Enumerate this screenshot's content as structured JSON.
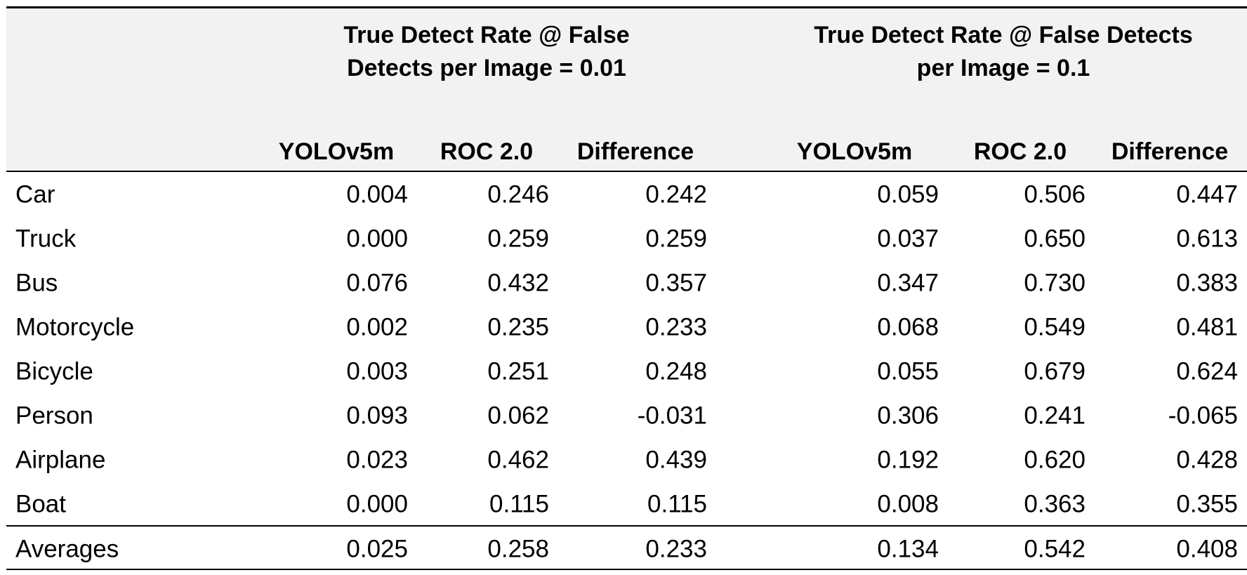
{
  "table": {
    "groups": [
      {
        "lines": [
          "True Detect Rate @ False",
          "Detects per Image = 0.01"
        ]
      },
      {
        "lines": [
          "True Detect Rate @ False Detects",
          "per Image = 0.1"
        ]
      }
    ],
    "columns": [
      "YOLOv5m",
      "ROC 2.0",
      "Difference",
      "YOLOv5m",
      "ROC 2.0",
      "Difference"
    ],
    "rows": [
      [
        "Car",
        "0.004",
        "0.246",
        "0.242",
        "0.059",
        "0.506",
        "0.447"
      ],
      [
        "Truck",
        "0.000",
        "0.259",
        "0.259",
        "0.037",
        "0.650",
        "0.613"
      ],
      [
        "Bus",
        "0.076",
        "0.432",
        "0.357",
        "0.347",
        "0.730",
        "0.383"
      ],
      [
        "Motorcycle",
        "0.002",
        "0.235",
        "0.233",
        "0.068",
        "0.549",
        "0.481"
      ],
      [
        "Bicycle",
        "0.003",
        "0.251",
        "0.248",
        "0.055",
        "0.679",
        "0.624"
      ],
      [
        "Person",
        "0.093",
        "0.062",
        "-0.031",
        "0.306",
        "0.241",
        "-0.065"
      ],
      [
        "Airplane",
        "0.023",
        "0.462",
        "0.439",
        "0.192",
        "0.620",
        "0.428"
      ],
      [
        "Boat",
        "0.000",
        "0.115",
        "0.115",
        "0.008",
        "0.363",
        "0.355"
      ]
    ],
    "averages": [
      "Averages",
      "0.025",
      "0.258",
      "0.233",
      "0.134",
      "0.542",
      "0.408"
    ]
  }
}
